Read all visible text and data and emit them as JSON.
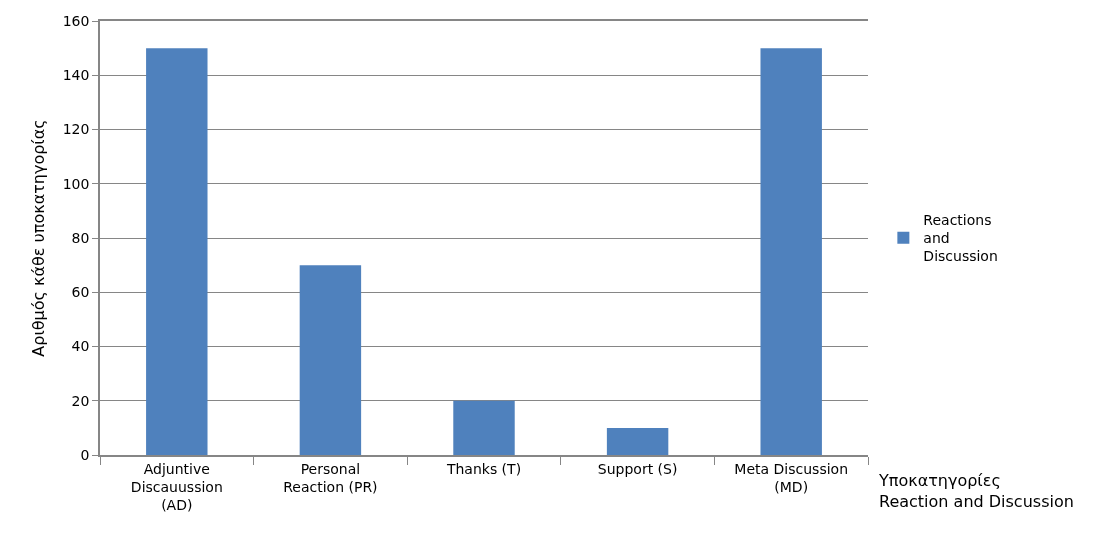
{
  "chart_data": {
    "type": "bar",
    "categories": [
      "Adjuntive Discauussion (AD)",
      "Personal Reaction (PR)",
      "Thanks (T)",
      "Support (S)",
      "Meta Discussion (MD)"
    ],
    "series": [
      {
        "name": "Reactions and Discussion",
        "color": "#4f81bd",
        "values": [
          150,
          70,
          20,
          10,
          150
        ]
      }
    ],
    "ylabel": "Αριθμός κάθε υποκατηγορίας",
    "xlabel": "Υποκατηγορίες Reaction and Discussion",
    "ylim": [
      0,
      160
    ],
    "yticks": [
      0,
      20,
      40,
      60,
      80,
      100,
      120,
      140,
      160
    ],
    "grid": "y",
    "legend": "right"
  }
}
